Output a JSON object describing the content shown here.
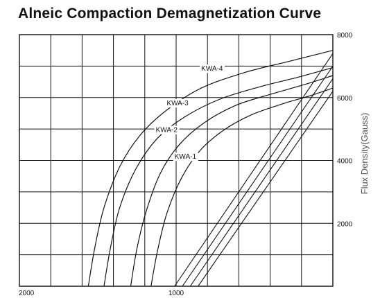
{
  "chart_data": {
    "type": "line",
    "title": "Alneic Compaction Demagnetization Curve",
    "xlabel": "",
    "ylabel": "Flux Density(Gauss)",
    "x_reversed": true,
    "xlim": [
      2000,
      0
    ],
    "ylim": [
      0,
      8000
    ],
    "x_ticks": [
      {
        "value": 2000,
        "label": "2000"
      },
      {
        "value": 1000,
        "label": "1000"
      }
    ],
    "y_ticks": [
      {
        "value": 8000,
        "label": "8000"
      },
      {
        "value": 6000,
        "label": "6000"
      },
      {
        "value": 4000,
        "label": "4000"
      },
      {
        "value": 2000,
        "label": "2000"
      }
    ],
    "grid": true,
    "series": [
      {
        "name": "KWA-4",
        "x": [
          1560,
          1520,
          1460,
          1360,
          1230,
          1060,
          840,
          560,
          280,
          0
        ],
        "y": [
          0,
          1200,
          2500,
          3800,
          4800,
          5600,
          6300,
          6800,
          7150,
          7500
        ]
      },
      {
        "name": "KWA-3",
        "x": [
          1460,
          1420,
          1360,
          1260,
          1120,
          940,
          720,
          460,
          220,
          0
        ],
        "y": [
          0,
          1200,
          2500,
          3700,
          4700,
          5400,
          5950,
          6350,
          6650,
          6950
        ]
      },
      {
        "name": "KWA-2",
        "x": [
          1290,
          1250,
          1190,
          1100,
          980,
          820,
          620,
          400,
          190,
          0
        ],
        "y": [
          0,
          1200,
          2400,
          3600,
          4500,
          5200,
          5750,
          6100,
          6400,
          6700
        ]
      },
      {
        "name": "KWA-1",
        "x": [
          1160,
          1120,
          1060,
          970,
          850,
          700,
          520,
          320,
          150,
          0
        ],
        "y": [
          0,
          1100,
          2300,
          3400,
          4300,
          4950,
          5450,
          5800,
          6050,
          6300
        ]
      }
    ],
    "load_lines": [
      {
        "x": [
          1010,
          0
        ],
        "y": [
          0,
          7400
        ]
      },
      {
        "x": [
          960,
          0
        ],
        "y": [
          0,
          7000
        ]
      },
      {
        "x": [
          910,
          0
        ],
        "y": [
          0,
          6600
        ]
      },
      {
        "x": [
          860,
          0
        ],
        "y": [
          0,
          6200
        ]
      }
    ],
    "label_positions": [
      {
        "name": "KWA-4",
        "x": 840,
        "y": 6850
      },
      {
        "name": "KWA-3",
        "x": 1060,
        "y": 5750
      },
      {
        "name": "KWA-2",
        "x": 1130,
        "y": 4900
      },
      {
        "name": "KWA-1",
        "x": 1010,
        "y": 4050
      }
    ]
  }
}
